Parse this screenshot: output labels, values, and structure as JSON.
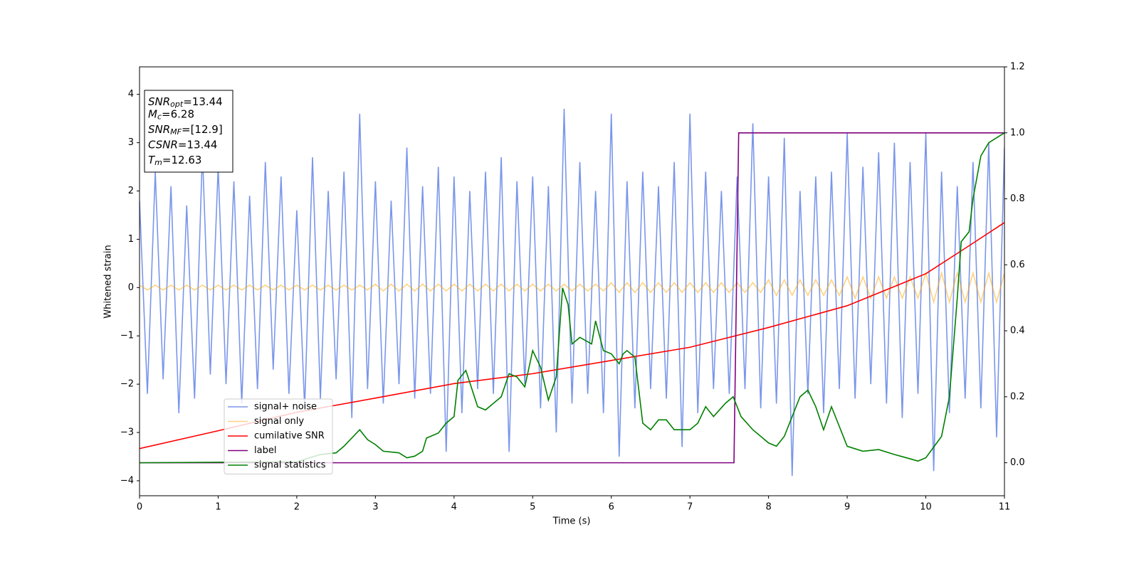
{
  "chart_data": {
    "type": "line",
    "xlabel": "Time (s)",
    "ylabel": "Whitened strain",
    "xlim": [
      0,
      11
    ],
    "ylim": [
      -4.31,
      4.57
    ],
    "y2lim": [
      -0.1,
      1.2
    ],
    "xticks": [
      0,
      1,
      2,
      3,
      4,
      5,
      6,
      7,
      8,
      9,
      10,
      11
    ],
    "yticks": [
      {
        "value": -4,
        "label": "−4"
      },
      {
        "value": -3,
        "label": "−3"
      },
      {
        "value": -2,
        "label": "−2"
      },
      {
        "value": -1,
        "label": "−1"
      },
      0,
      1,
      2,
      3,
      4
    ],
    "y2ticks": [
      {
        "value": 0,
        "label": "0.0"
      },
      {
        "value": 0.2,
        "label": "0.2"
      },
      {
        "value": 0.4,
        "label": "0.4"
      },
      {
        "value": 0.6,
        "label": "0.6"
      },
      {
        "value": 0.8,
        "label": "0.8"
      },
      {
        "value": 1,
        "label": "1.0"
      },
      {
        "value": 1.2,
        "label": "1.2"
      }
    ],
    "legend": "lower left",
    "x": [
      0,
      0.1,
      0.2,
      0.3,
      0.4,
      0.5,
      0.6,
      0.7,
      0.8,
      0.9,
      1,
      1.1,
      1.2,
      1.3,
      1.4,
      1.5,
      1.6,
      1.7,
      1.8,
      1.9,
      2,
      2.1,
      2.2,
      2.3,
      2.4,
      2.5,
      2.6,
      2.7,
      2.8,
      2.9,
      3,
      3.1,
      3.2,
      3.3,
      3.4,
      3.5,
      3.6,
      3.7,
      3.8,
      3.9,
      4,
      4.1,
      4.2,
      4.3,
      4.4,
      4.5,
      4.6,
      4.7,
      4.8,
      4.9,
      5,
      5.1,
      5.2,
      5.3,
      5.4,
      5.5,
      5.6,
      5.7,
      5.8,
      5.9,
      6,
      6.1,
      6.2,
      6.3,
      6.4,
      6.5,
      6.6,
      6.7,
      6.8,
      6.9,
      7,
      7.1,
      7.2,
      7.3,
      7.4,
      7.5,
      7.6,
      7.7,
      7.8,
      7.9,
      8,
      8.1,
      8.2,
      8.3,
      8.4,
      8.5,
      8.6,
      8.7,
      8.8,
      8.9,
      9,
      9.1,
      9.2,
      9.3,
      9.4,
      9.5,
      9.6,
      9.7,
      9.8,
      9.9,
      10,
      10.1,
      10.2,
      10.3,
      10.4,
      10.5,
      10.6,
      10.7,
      10.8,
      10.9,
      11
    ],
    "series": [
      {
        "name": "signal+ noise",
        "color": "#4169e1",
        "values": [
          1.8,
          -2.2,
          2.4,
          -1.9,
          2.1,
          -2.6,
          1.7,
          -2.3,
          2.8,
          -1.8,
          2.5,
          -2.0,
          2.2,
          -2.4,
          1.9,
          -2.1,
          2.6,
          -1.7,
          2.3,
          -2.2,
          1.6,
          -2.5,
          2.7,
          -2.3,
          2.0,
          -1.9,
          2.4,
          -2.7,
          3.6,
          -2.1,
          2.2,
          -2.4,
          1.8,
          -2.0,
          2.9,
          -2.3,
          2.1,
          -2.2,
          2.5,
          -3.4,
          2.3,
          -2.6,
          2.0,
          -2.1,
          2.4,
          -2.2,
          2.7,
          -3.4,
          2.2,
          -2.0,
          2.3,
          -2.5,
          2.1,
          -3.0,
          3.7,
          -2.4,
          2.6,
          -2.2,
          2.0,
          -2.6,
          3.6,
          -3.5,
          2.2,
          -2.5,
          2.4,
          -2.1,
          2.1,
          -2.3,
          2.6,
          -3.3,
          3.6,
          -2.6,
          2.4,
          -2.1,
          2.0,
          -2.2,
          2.3,
          -2.1,
          3.4,
          -2.5,
          2.3,
          -2.4,
          3.1,
          -3.9,
          2.0,
          -2.2,
          2.3,
          -2.6,
          2.4,
          -2.1,
          3.2,
          -2.3,
          2.5,
          -2.0,
          2.8,
          -2.4,
          3.0,
          -2.7,
          2.6,
          -2.2,
          3.2,
          -3.8,
          2.4,
          -2.6,
          2.1,
          -2.3,
          2.6,
          -2.5,
          3.0,
          -3.1,
          2.9
        ]
      },
      {
        "name": "signal only",
        "color": "#ffa500",
        "values": [
          0.05,
          -0.05,
          0.05,
          -0.05,
          0.05,
          -0.05,
          0.05,
          -0.05,
          0.05,
          -0.05,
          0.05,
          -0.05,
          0.05,
          -0.05,
          0.05,
          -0.05,
          0.05,
          -0.05,
          0.05,
          -0.05,
          0.05,
          -0.05,
          0.05,
          -0.05,
          0.05,
          -0.05,
          0.05,
          -0.05,
          0.05,
          -0.05,
          0.07,
          -0.07,
          0.07,
          -0.07,
          0.07,
          -0.07,
          0.07,
          -0.07,
          0.07,
          -0.07,
          0.07,
          -0.07,
          0.07,
          -0.07,
          0.07,
          -0.07,
          0.07,
          -0.07,
          0.07,
          -0.07,
          0.07,
          -0.07,
          0.07,
          -0.07,
          0.07,
          -0.07,
          0.07,
          -0.07,
          0.07,
          -0.07,
          0.1,
          -0.1,
          0.1,
          -0.1,
          0.1,
          -0.1,
          0.1,
          -0.1,
          0.1,
          -0.1,
          0.1,
          -0.1,
          0.1,
          -0.1,
          0.1,
          -0.1,
          0.1,
          -0.1,
          0.1,
          -0.1,
          0.16,
          -0.16,
          0.16,
          -0.16,
          0.16,
          -0.16,
          0.16,
          -0.16,
          0.16,
          -0.16,
          0.22,
          -0.22,
          0.22,
          -0.22,
          0.22,
          -0.22,
          0.22,
          -0.22,
          0.22,
          -0.22,
          0.3,
          -0.3,
          0.3,
          -0.3,
          0.3,
          -0.3,
          0.3,
          -0.3,
          0.3,
          -0.3,
          0.3
        ]
      },
      {
        "name": "cumilative SNR",
        "color": "#ff0000",
        "axis": "y2",
        "x": [
          0,
          1,
          2,
          3,
          4,
          5,
          6,
          7,
          8,
          9,
          10,
          10.5,
          11
        ],
        "values": [
          0.043,
          0.097,
          0.153,
          0.196,
          0.24,
          0.27,
          0.31,
          0.35,
          0.41,
          0.476,
          0.573,
          0.65,
          0.728
        ]
      },
      {
        "name": "label",
        "color": "#800080",
        "axis": "y2",
        "x": [
          0,
          7.56,
          7.62,
          11
        ],
        "values": [
          0,
          0,
          1,
          1
        ]
      },
      {
        "name": "signal statistics",
        "color": "#008000",
        "axis": "y2",
        "x": [
          0,
          2,
          2.3,
          2.5,
          2.6,
          2.8,
          2.9,
          3.0,
          3.1,
          3.3,
          3.4,
          3.5,
          3.6,
          3.65,
          3.8,
          3.9,
          4.0,
          4.05,
          4.15,
          4.3,
          4.4,
          4.5,
          4.6,
          4.7,
          4.8,
          4.9,
          5.0,
          5.1,
          5.2,
          5.3,
          5.38,
          5.45,
          5.5,
          5.6,
          5.75,
          5.8,
          5.9,
          6.0,
          6.1,
          6.15,
          6.2,
          6.3,
          6.4,
          6.5,
          6.6,
          6.7,
          6.8,
          6.9,
          7.0,
          7.1,
          7.2,
          7.3,
          7.45,
          7.55,
          7.65,
          7.8,
          8.0,
          8.1,
          8.2,
          8.3,
          8.4,
          8.5,
          8.6,
          8.7,
          8.8,
          9.0,
          9.2,
          9.4,
          9.6,
          9.8,
          9.9,
          10.0,
          10.2,
          10.3,
          10.4,
          10.45,
          10.55,
          10.6,
          10.7,
          10.8,
          11
        ],
        "values": [
          0.0,
          0.003,
          0.025,
          0.03,
          0.05,
          0.1,
          0.07,
          0.055,
          0.035,
          0.03,
          0.015,
          0.02,
          0.035,
          0.075,
          0.09,
          0.12,
          0.14,
          0.25,
          0.28,
          0.17,
          0.16,
          0.18,
          0.2,
          0.27,
          0.26,
          0.23,
          0.34,
          0.29,
          0.19,
          0.26,
          0.53,
          0.48,
          0.36,
          0.38,
          0.36,
          0.43,
          0.34,
          0.33,
          0.3,
          0.33,
          0.34,
          0.32,
          0.12,
          0.1,
          0.13,
          0.13,
          0.1,
          0.1,
          0.1,
          0.12,
          0.17,
          0.14,
          0.18,
          0.2,
          0.14,
          0.1,
          0.06,
          0.05,
          0.08,
          0.14,
          0.2,
          0.22,
          0.17,
          0.1,
          0.17,
          0.05,
          0.035,
          0.04,
          0.025,
          0.012,
          0.005,
          0.015,
          0.08,
          0.2,
          0.5,
          0.67,
          0.7,
          0.8,
          0.93,
          0.97,
          1.0
        ]
      }
    ],
    "annotations": [
      {
        "text": "SNR",
        "sub": "opt",
        "rest": "=13.44"
      },
      {
        "text": "M",
        "sub": "c",
        "rest": "=6.28"
      },
      {
        "text": "SNR",
        "sub": "MF",
        "rest": "=[12.9]"
      },
      {
        "text": "CSNR",
        "rest": "=13.44"
      },
      {
        "text": "T",
        "sub": "m",
        "rest": "=12.63"
      }
    ]
  }
}
